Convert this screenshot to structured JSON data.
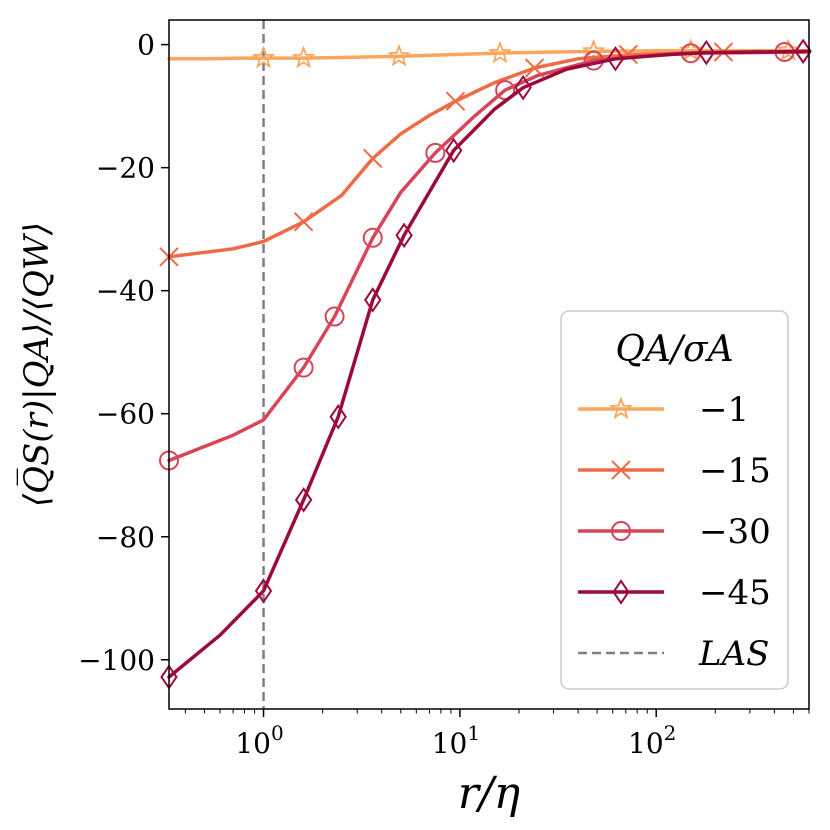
{
  "chart_data": {
    "type": "line",
    "xscale": "log",
    "xlabel": "r/η",
    "ylabel": "⟨Q̅S(r)|QA⟩/⟨QW⟩",
    "xlim": [
      0.33,
      600
    ],
    "ylim": [
      -108,
      4
    ],
    "x_ticks": [
      {
        "value": 1,
        "base": "10",
        "exp": "0"
      },
      {
        "value": 10,
        "base": "10",
        "exp": "1"
      },
      {
        "value": 100,
        "base": "10",
        "exp": "2"
      }
    ],
    "y_ticks": [
      {
        "value": 0,
        "label": "0"
      },
      {
        "value": -20,
        "label": "−20"
      },
      {
        "value": -40,
        "label": "−40"
      },
      {
        "value": -60,
        "label": "−60"
      },
      {
        "value": -80,
        "label": "−80"
      },
      {
        "value": -100,
        "label": "−100"
      }
    ],
    "legend": {
      "title": "QA/σA",
      "position": "lower-right",
      "entries": [
        {
          "label": "−1",
          "series": 0
        },
        {
          "label": "−15",
          "series": 1
        },
        {
          "label": "−30",
          "series": 2
        },
        {
          "label": "−45",
          "series": 3
        },
        {
          "label": "LAS",
          "vline": true
        }
      ]
    },
    "vline": {
      "x": 1,
      "label": "LAS",
      "color": "#808080",
      "dash": "dashed"
    },
    "series": [
      {
        "name": "−1",
        "color": "#fba65d",
        "marker": "star",
        "x": [
          0.33,
          0.5,
          0.8,
          1.0,
          1.6,
          2.5,
          5,
          10,
          15,
          30,
          50,
          100,
          200,
          600
        ],
        "y": [
          -2.3,
          -2.3,
          -2.2,
          -2.2,
          -2.2,
          -2.1,
          -1.9,
          -1.6,
          -1.4,
          -1.2,
          -1.1,
          -1.0,
          -1.0,
          -1.0
        ],
        "marker_x": [
          1.0,
          1.6,
          4.9,
          16,
          48,
          150,
          470
        ],
        "marker_y": [
          -2.2,
          -2.2,
          -1.9,
          -1.4,
          -1.1,
          -1.0,
          -1.0
        ]
      },
      {
        "name": "−15",
        "color": "#ef6b45",
        "marker": "x",
        "x": [
          0.33,
          0.7,
          1.0,
          1.6,
          2.5,
          3.6,
          5,
          7,
          9.5,
          15,
          24,
          40,
          70,
          150,
          600
        ],
        "y": [
          -34.5,
          -33.2,
          -32.0,
          -28.8,
          -24.5,
          -18.5,
          -14.5,
          -11.5,
          -9.2,
          -6.2,
          -3.8,
          -2.3,
          -1.7,
          -1.3,
          -1.1
        ],
        "marker_x": [
          0.33,
          1.6,
          3.6,
          9.5,
          24,
          72,
          220
        ],
        "marker_y": [
          -34.5,
          -28.8,
          -18.5,
          -9.2,
          -3.8,
          -1.6,
          -1.2
        ]
      },
      {
        "name": "−30",
        "color": "#d64659",
        "marker": "circle",
        "x": [
          0.33,
          0.7,
          1.0,
          1.6,
          2.3,
          3.6,
          5,
          7.5,
          12,
          17,
          25,
          48,
          100,
          150,
          600
        ],
        "y": [
          -67.6,
          -63.5,
          -61.0,
          -52.5,
          -44.2,
          -31.4,
          -24.0,
          -17.6,
          -11.5,
          -7.4,
          -5.0,
          -2.6,
          -1.7,
          -1.4,
          -1.2
        ],
        "marker_x": [
          0.33,
          1.6,
          2.3,
          3.6,
          7.5,
          17,
          48,
          150,
          450
        ],
        "marker_y": [
          -67.6,
          -52.5,
          -44.2,
          -31.4,
          -17.6,
          -7.4,
          -2.6,
          -1.4,
          -1.2
        ]
      },
      {
        "name": "−45",
        "color": "#9c0a3d",
        "marker": "diamond",
        "x": [
          0.33,
          0.6,
          1.0,
          1.6,
          2.4,
          3.6,
          5.2,
          9.3,
          15,
          21,
          35,
          62,
          120,
          180,
          600
        ],
        "y": [
          -102.8,
          -96.0,
          -88.8,
          -74.0,
          -60.5,
          -41.5,
          -31.0,
          -17.2,
          -10.5,
          -7.0,
          -4.0,
          -2.3,
          -1.6,
          -1.3,
          -1.1
        ],
        "marker_x": [
          0.33,
          1.0,
          1.6,
          2.4,
          3.6,
          5.2,
          9.3,
          21,
          62,
          180,
          560
        ],
        "marker_y": [
          -102.8,
          -88.8,
          -74.0,
          -60.5,
          -41.5,
          -31.0,
          -17.2,
          -7.0,
          -2.3,
          -1.3,
          -1.1
        ]
      }
    ]
  }
}
